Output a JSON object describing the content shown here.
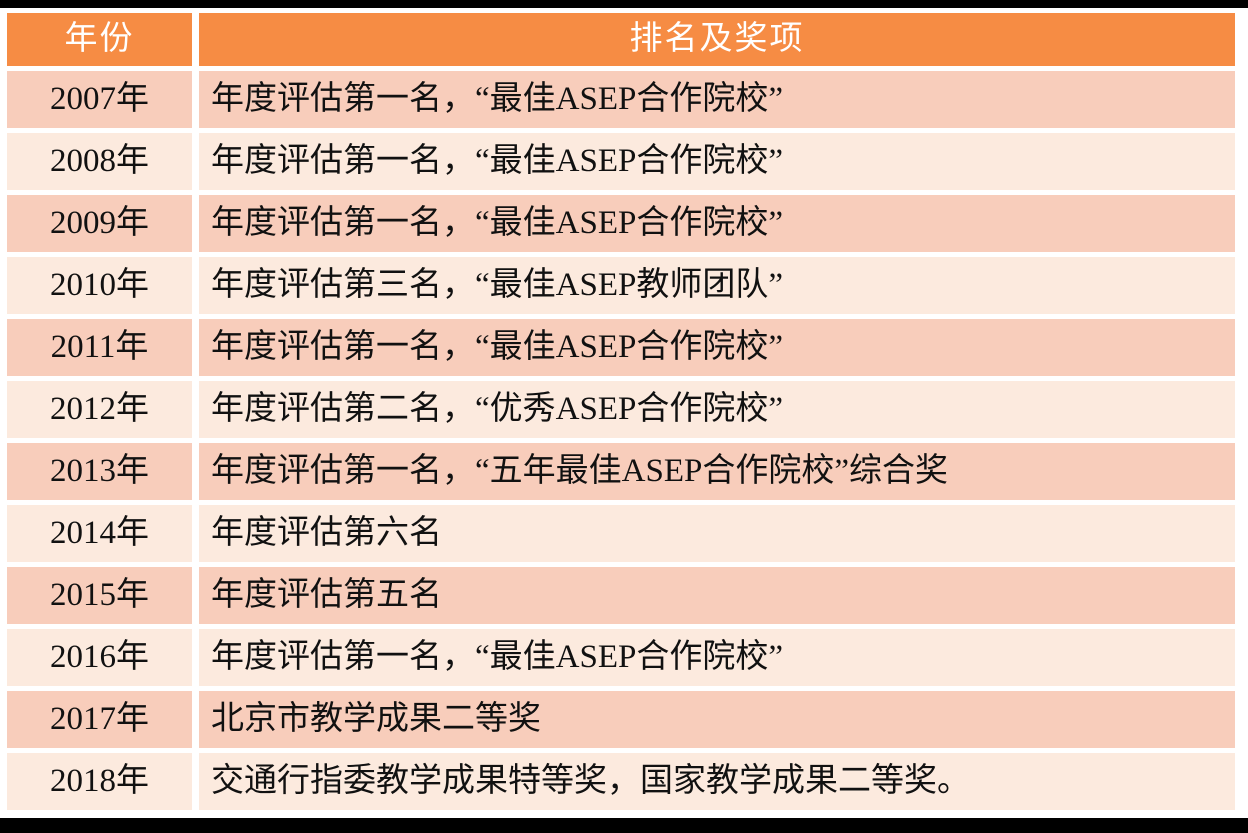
{
  "table": {
    "columns": {
      "year": "年份",
      "award": "排名及奖项"
    },
    "rows": [
      {
        "year": "2007年",
        "award": "年度评估第一名，“最佳ASEP合作院校”"
      },
      {
        "year": "2008年",
        "award": "年度评估第一名，“最佳ASEP合作院校”"
      },
      {
        "year": "2009年",
        "award": "年度评估第一名，“最佳ASEP合作院校”"
      },
      {
        "year": "2010年",
        "award": "年度评估第三名，“最佳ASEP教师团队”"
      },
      {
        "year": "2011年",
        "award": "年度评估第一名，“最佳ASEP合作院校”"
      },
      {
        "year": "2012年",
        "award": "年度评估第二名，“优秀ASEP合作院校”"
      },
      {
        "year": "2013年",
        "award": "年度评估第一名，“五年最佳ASEP合作院校”综合奖"
      },
      {
        "year": "2014年",
        "award": "年度评估第六名"
      },
      {
        "year": "2015年",
        "award": "年度评估第五名"
      },
      {
        "year": "2016年",
        "award": "年度评估第一名，“最佳ASEP合作院校”"
      },
      {
        "year": "2017年",
        "award": "北京市教学成果二等奖"
      },
      {
        "year": "2018年",
        "award": "交通行指委教学成果特等奖，国家教学成果二等奖。"
      }
    ]
  },
  "colors": {
    "header_bg": "#f68c44",
    "header_text": "#ffffff",
    "row_band_dark": "#f8cdbb",
    "row_band_light": "#fceade",
    "body_text": "#111111",
    "frame_bars": "#000000"
  }
}
